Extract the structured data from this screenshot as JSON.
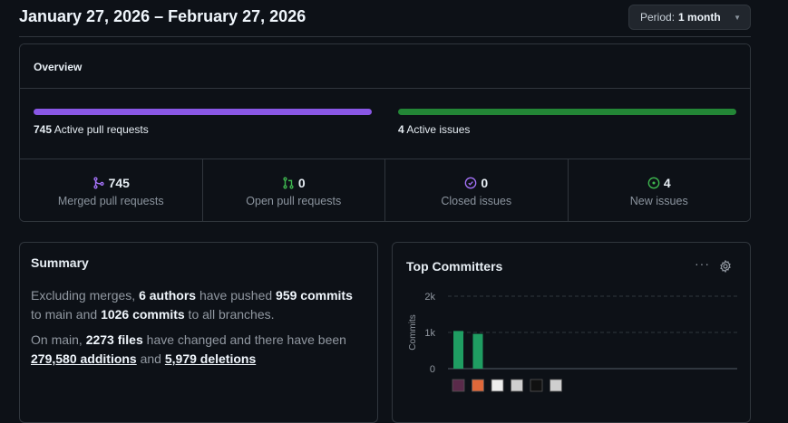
{
  "header": {
    "title": "January 27, 2026 – February 27, 2026",
    "period_label": "Period:",
    "period_value": "1 month"
  },
  "overview": {
    "title": "Overview",
    "active_prs": {
      "count": "745",
      "label": "Active pull requests",
      "fraction": 1.0,
      "color": "#8957e5"
    },
    "active_issues": {
      "count": "4",
      "label": "Active issues",
      "fraction": 1.0,
      "color": "#238636"
    },
    "stats": [
      {
        "icon": "git-merge-icon",
        "value": "745",
        "label": "Merged pull requests",
        "color": "#a371f7"
      },
      {
        "icon": "git-pull-request-icon",
        "value": "0",
        "label": "Open pull requests",
        "color": "#3fb950"
      },
      {
        "icon": "issue-closed-icon",
        "value": "0",
        "label": "Closed issues",
        "color": "#a371f7"
      },
      {
        "icon": "issue-opened-icon",
        "value": "4",
        "label": "New issues",
        "color": "#3fb950"
      }
    ]
  },
  "summary": {
    "title": "Summary",
    "p1": {
      "a": "Excluding merges, ",
      "authors": "6 authors",
      "b": " have pushed ",
      "commits_main": "959 commits",
      "c": " to main and ",
      "commits_all": "1026 commits",
      "d": " to all branches."
    },
    "p2": {
      "a": "On main, ",
      "files": "2273 files",
      "b": " have changed and there have been ",
      "additions": "279,580 additions",
      "c": " and ",
      "deletions": "5,979 deletions"
    }
  },
  "top_committers": {
    "title": "Top Committers",
    "more_icon": "kebab-horizontal-icon",
    "settings_icon": "gear-icon",
    "chart_data": {
      "type": "bar",
      "ylabel": "Commits",
      "yticks": [
        "0",
        "1k",
        "2k"
      ],
      "ylim": [
        0,
        2000
      ],
      "values": [
        1040,
        960,
        0,
        0,
        0,
        0
      ],
      "bar_color": "#1f9d62",
      "grid": true,
      "avatars": [
        "avatar-1",
        "avatar-2",
        "avatar-3",
        "avatar-4",
        "avatar-github",
        "avatar-6"
      ]
    }
  }
}
